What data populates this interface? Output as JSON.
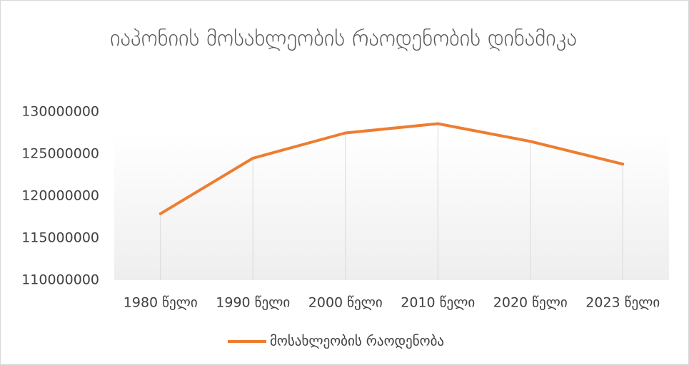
{
  "chart_data": {
    "type": "line",
    "title": "იაპონიის მოსახლეობის რაოდენობის დინამიკა",
    "categories": [
      "1980 წელი",
      "1990 წელი",
      "2000 წელი",
      "2010 წელი",
      "2020 წელი",
      "2023 წელი"
    ],
    "series": [
      {
        "name": "მოსახლეობის რაოდენობა",
        "color": "#ed7d31",
        "values": [
          117900000,
          124500000,
          127500000,
          128600000,
          126500000,
          123800000
        ]
      }
    ],
    "ylim": [
      110000000,
      130000000
    ],
    "yticks": [
      110000000,
      115000000,
      120000000,
      125000000,
      130000000
    ],
    "grid": false,
    "drop_lines": true,
    "legend": "bottom"
  }
}
